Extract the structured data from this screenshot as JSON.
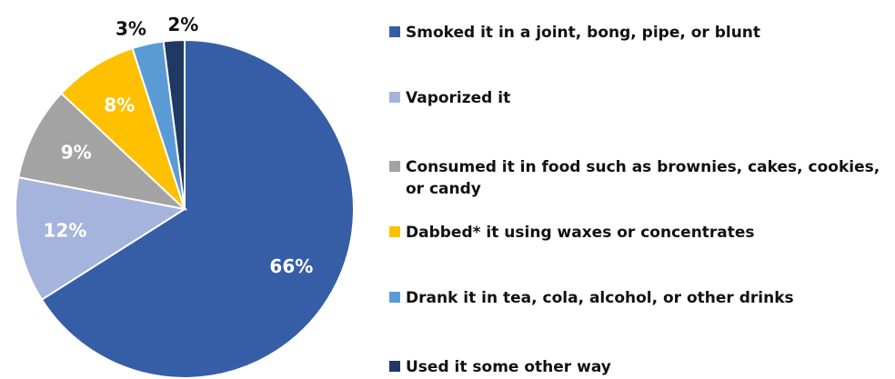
{
  "chart_data": {
    "type": "pie",
    "title": "",
    "categories": [
      "Smoked it in a joint, bong, pipe, or blunt",
      "Vaporized it",
      "Consumed it in food such as brownies, cakes, cookies, or candy",
      "Dabbed* it using waxes or concentrates",
      "Drank it in tea, cola, alcohol, or other drinks",
      "Used it some other way"
    ],
    "values": [
      66,
      12,
      9,
      8,
      3,
      2
    ],
    "data_labels": [
      "66%",
      "12%",
      "9%",
      "8%",
      "3%",
      "2%"
    ],
    "colors": [
      "#365ea6",
      "#a5b4dd",
      "#a3a3a3",
      "#ffc000",
      "#5b9bd5",
      "#203864"
    ],
    "legend_position": "right"
  }
}
